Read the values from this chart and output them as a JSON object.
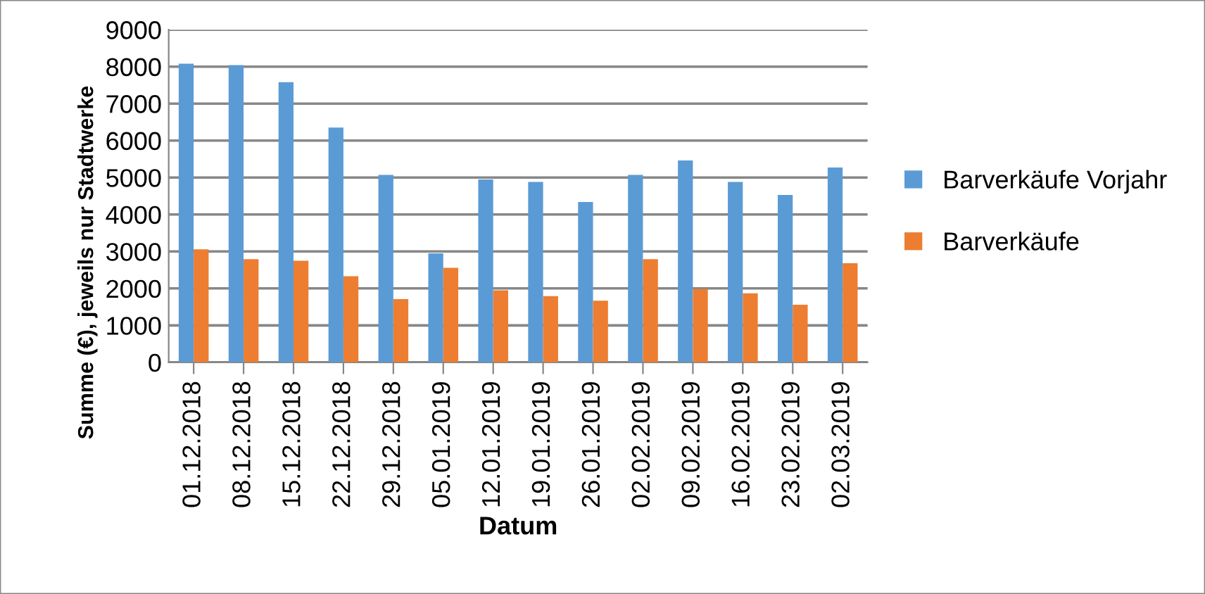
{
  "chart_data": {
    "type": "bar",
    "xlabel": "Datum",
    "ylabel": "Summe (€), jeweils nur Stadtwerke",
    "categories": [
      "01.12.2018",
      "08.12.2018",
      "15.12.2018",
      "22.12.2018",
      "29.12.2018",
      "05.01.2019",
      "12.01.2019",
      "19.01.2019",
      "26.01.2019",
      "02.02.2019",
      "09.02.2019",
      "16.02.2019",
      "23.02.2019",
      "02.03.2019"
    ],
    "series": [
      {
        "name": "Barverkäufe Vorjahr",
        "color": "#5b9bd5",
        "values": [
          8080,
          8040,
          7580,
          6350,
          5070,
          2950,
          4950,
          4880,
          4340,
          5070,
          5460,
          4880,
          4530,
          5270
        ]
      },
      {
        "name": "Barverkäufe",
        "color": "#ed7d31",
        "values": [
          3060,
          2790,
          2750,
          2330,
          1710,
          2560,
          1950,
          1790,
          1670,
          2790,
          1980,
          1870,
          1560,
          2680
        ]
      }
    ],
    "ylim": [
      0,
      9000
    ],
    "yticks": [
      0,
      1000,
      2000,
      3000,
      4000,
      5000,
      6000,
      7000,
      8000,
      9000
    ],
    "grid": "y",
    "legend": "right"
  }
}
